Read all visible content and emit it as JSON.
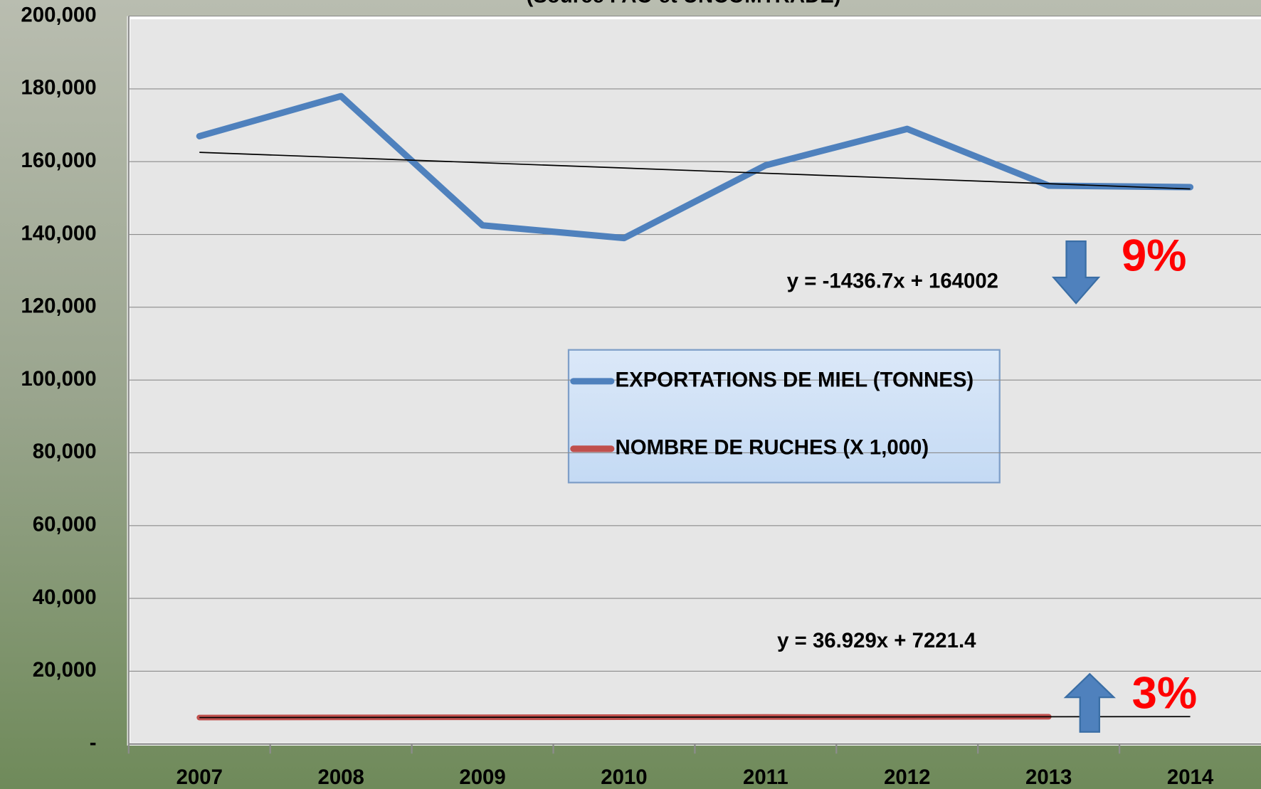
{
  "chart_data": {
    "type": "line",
    "title": "(Source FAO et UNCOMTRADE)",
    "categories": [
      "2007",
      "2008",
      "2009",
      "2010",
      "2011",
      "2012",
      "2013",
      "2014"
    ],
    "series": [
      {
        "name": "EXPORTATIONS DE MIEL (TONNES)",
        "color": "#4f81bd",
        "values": [
          167000,
          178000,
          142500,
          139000,
          159000,
          169000,
          153400,
          153000
        ]
      },
      {
        "name": "NOMBRE DE RUCHES (X 1,000)",
        "color": "#c0504d",
        "values": [
          7260,
          7300,
          7330,
          7370,
          7420,
          7400,
          7480,
          null
        ]
      }
    ],
    "trendlines": [
      {
        "label": "y = -1436.7x + 164002",
        "slope": -1436.7,
        "intercept": 164002,
        "color": "#000000"
      },
      {
        "label": "y = 36.929x + 7221.4",
        "slope": 36.929,
        "intercept": 7221.4,
        "color": "#000000"
      }
    ],
    "annotations": [
      {
        "text": "9%",
        "direction": "down"
      },
      {
        "text": "3%",
        "direction": "up"
      }
    ],
    "ylim": [
      0,
      200000
    ],
    "yticks": [
      {
        "value": 0,
        "label": "-"
      },
      {
        "value": 20000,
        "label": "20,000"
      },
      {
        "value": 40000,
        "label": "40,000"
      },
      {
        "value": 60000,
        "label": "60,000"
      },
      {
        "value": 80000,
        "label": "80,000"
      },
      {
        "value": 100000,
        "label": "100,000"
      },
      {
        "value": 120000,
        "label": "120,000"
      },
      {
        "value": 140000,
        "label": "140,000"
      },
      {
        "value": 160000,
        "label": "160,000"
      },
      {
        "value": 180000,
        "label": "180,000"
      },
      {
        "value": 200000,
        "label": "200,000"
      }
    ],
    "grid": true
  }
}
